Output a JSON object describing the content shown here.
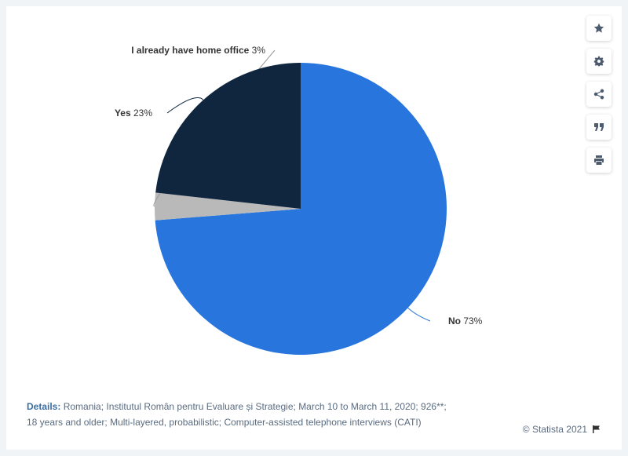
{
  "chart_data": {
    "type": "pie",
    "title": "",
    "slices": [
      {
        "label": "No",
        "value": 73,
        "value_label": "73%",
        "color": "#2876dd"
      },
      {
        "label": "I already have home office",
        "value": 3,
        "value_label": "3%",
        "color": "#b9b9b9"
      },
      {
        "label": "Yes",
        "value": 23,
        "value_label": "23%",
        "color": "#10253e"
      }
    ],
    "start_angle_deg": 0,
    "direction": "clockwise"
  },
  "details": {
    "label": "Details:",
    "text": "Romania; Institutul Român pentru Evaluare și Strategie; March 10 to March 11, 2020; 926**; 18 years and older; Multi-layered, probabilistic; Computer-assisted telephone interviews (CATI)"
  },
  "credit": {
    "text": "© Statista 2021",
    "icon": "flag-icon"
  },
  "toolbar": {
    "buttons": [
      {
        "name": "favorite-button",
        "icon": "star-icon"
      },
      {
        "name": "settings-button",
        "icon": "gear-icon"
      },
      {
        "name": "share-button",
        "icon": "share-icon"
      },
      {
        "name": "cite-button",
        "icon": "quote-icon"
      },
      {
        "name": "print-button",
        "icon": "printer-icon"
      }
    ]
  }
}
